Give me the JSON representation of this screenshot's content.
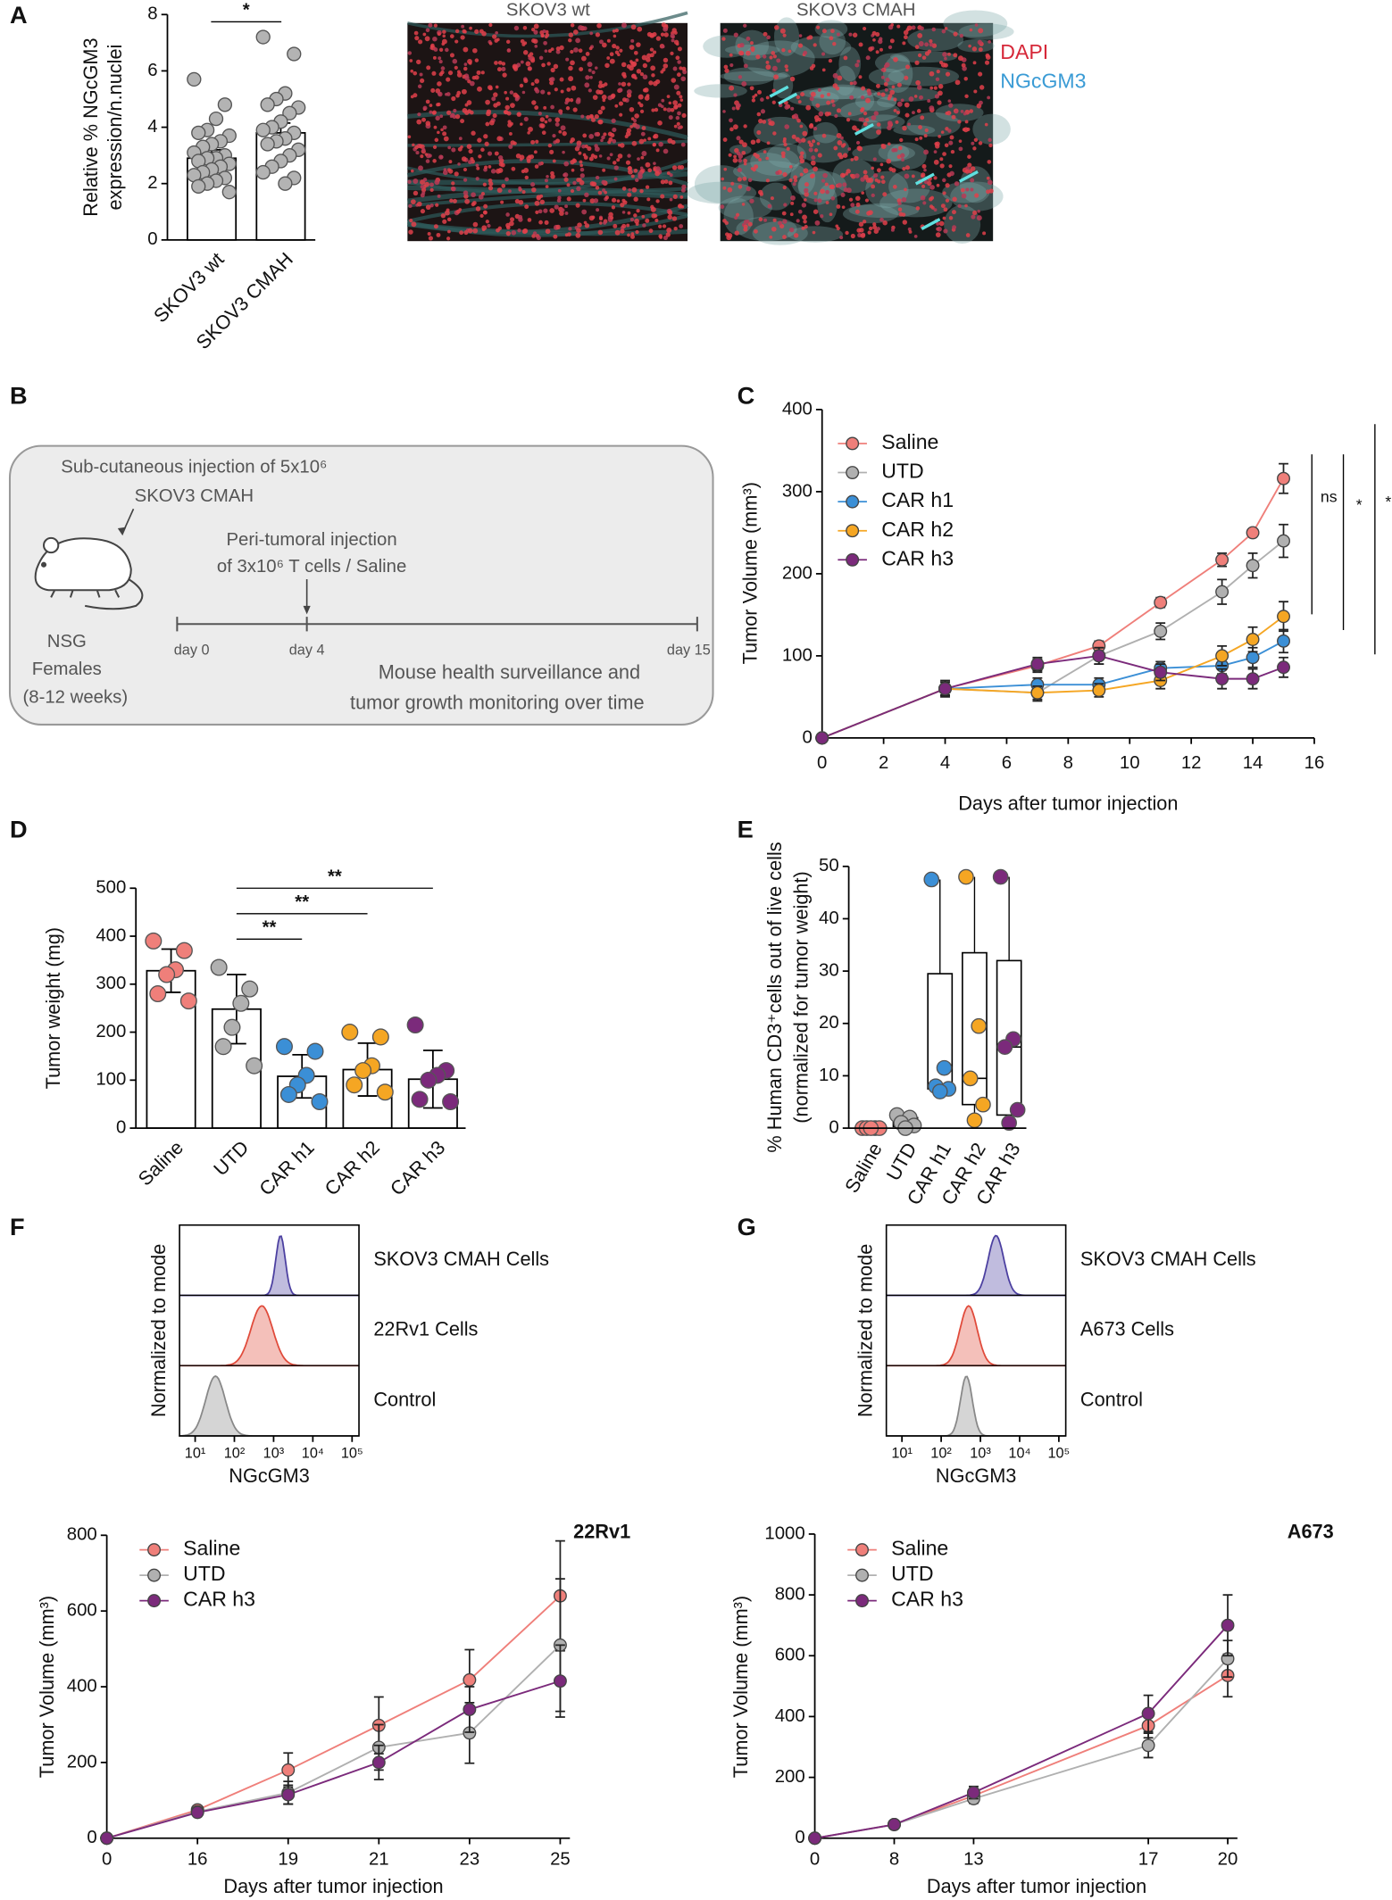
{
  "panel_labels": [
    "A",
    "B",
    "C",
    "D",
    "E",
    "F",
    "G"
  ],
  "images": {
    "titles": [
      "SKOV3 wt",
      "SKOV3 CMAH"
    ],
    "legend": [
      {
        "name": "DAPI",
        "color": "#d62839"
      },
      {
        "name": "NGcGM3",
        "color": "#3a9bd5"
      }
    ]
  },
  "schematic": {
    "injection": [
      "Sub-cutaneous injection of 5x10⁶",
      "SKOV3 CMAH"
    ],
    "treatment": [
      "Peri-tumoral injection",
      "of 3x10⁶ T cells / Saline"
    ],
    "mice": [
      "NSG",
      "Females",
      "(8-12 weeks)"
    ],
    "timeline": [
      "day 0",
      "day 4",
      "day 15"
    ],
    "monitoring": [
      "Mouse health surveillance and",
      "tumor growth monitoring over time"
    ]
  },
  "chart_data": [
    {
      "type": "bar_dot",
      "ylabel": [
        "Relative % NGcGM3",
        "expression/n.nuclei"
      ],
      "categories": [
        "SKOV3 wt",
        "SKOV3 CMAH"
      ],
      "values": [
        2.9,
        3.8
      ],
      "errors": [
        0.3,
        0.35
      ],
      "points": [
        [
          5.7,
          4.8,
          4.3,
          3.9,
          3.8,
          3.7,
          3.5,
          3.4,
          3.3,
          3.1,
          3.0,
          2.9,
          2.9,
          2.8,
          2.7,
          2.6,
          2.5,
          2.4,
          2.3,
          2.2,
          2.1,
          2.0,
          1.9,
          1.7
        ],
        [
          7.2,
          6.6,
          5.2,
          5.0,
          4.8,
          4.7,
          4.5,
          4.2,
          4.0,
          3.9,
          3.8,
          3.6,
          3.5,
          3.4,
          3.2,
          3.0,
          2.8,
          2.6,
          2.4,
          2.2,
          2.0
        ]
      ],
      "point_colors": [
        "#b3b3b3",
        "#b3b3b3"
      ],
      "ylim": [
        0,
        8
      ],
      "yticks": [
        0,
        2,
        4,
        6,
        8
      ],
      "annotations": [
        "*"
      ]
    },
    {
      "type": "line",
      "xlabel": "Days after tumor injection",
      "ylabel": "Tumor Volume (mm³)",
      "x": [
        0,
        4,
        7,
        9,
        11,
        13,
        14,
        15
      ],
      "xlim": [
        0,
        16
      ],
      "xticks": [
        0,
        2,
        4,
        6,
        8,
        10,
        12,
        14,
        16
      ],
      "ylim": [
        0,
        400
      ],
      "yticks": [
        0,
        100,
        200,
        300,
        400
      ],
      "series": [
        {
          "name": "Saline",
          "color": "#ef7f7a",
          "values": [
            0,
            60,
            88,
            112,
            165,
            217,
            250,
            316
          ],
          "errors": [
            0,
            10,
            8,
            6,
            6,
            8,
            0,
            18
          ]
        },
        {
          "name": "UTD",
          "color": "#b0b0b0",
          "values": [
            0,
            60,
            55,
            100,
            130,
            178,
            210,
            240
          ],
          "errors": [
            0,
            8,
            10,
            10,
            10,
            15,
            15,
            20
          ]
        },
        {
          "name": "CAR h1",
          "color": "#3b8fd6",
          "values": [
            0,
            60,
            65,
            65,
            85,
            88,
            98,
            118
          ],
          "errors": [
            0,
            8,
            8,
            8,
            8,
            10,
            12,
            14
          ]
        },
        {
          "name": "CAR h2",
          "color": "#f5a623",
          "values": [
            0,
            60,
            55,
            58,
            70,
            100,
            120,
            148
          ],
          "errors": [
            0,
            8,
            8,
            8,
            10,
            12,
            15,
            18
          ]
        },
        {
          "name": "CAR h3",
          "color": "#7b2a7b",
          "values": [
            0,
            60,
            90,
            100,
            80,
            72,
            72,
            86
          ],
          "errors": [
            0,
            8,
            8,
            10,
            10,
            12,
            12,
            12
          ]
        }
      ],
      "annotations": [
        "ns",
        "*",
        "*"
      ]
    },
    {
      "type": "bar_dot",
      "ylabel": "Tumor weight (mg)",
      "categories": [
        "Saline",
        "UTD",
        "CAR h1",
        "CAR h2",
        "CAR h3"
      ],
      "values": [
        328,
        248,
        108,
        122,
        102
      ],
      "errors": [
        45,
        72,
        45,
        55,
        60
      ],
      "points": [
        [
          390,
          370,
          330,
          320,
          280,
          265
        ],
        [
          335,
          290,
          260,
          210,
          170,
          130
        ],
        [
          170,
          160,
          110,
          90,
          70,
          55
        ],
        [
          200,
          190,
          130,
          120,
          90,
          75
        ],
        [
          215,
          120,
          110,
          100,
          60,
          55
        ]
      ],
      "point_colors": [
        "#ef7f7a",
        "#b0b0b0",
        "#3b8fd6",
        "#f5a623",
        "#7b2a7b"
      ],
      "ylim": [
        0,
        500
      ],
      "yticks": [
        0,
        100,
        200,
        300,
        400,
        500
      ],
      "annotations": [
        "**",
        "**",
        "**"
      ]
    },
    {
      "type": "box",
      "ylabel": [
        "% Human CD3⁺cells out of live cells",
        "(normalized for tumor weight)"
      ],
      "categories": [
        "Saline",
        "UTD",
        "CAR h1",
        "CAR h2",
        "CAR h3"
      ],
      "boxes": [
        {
          "min": 0,
          "q1": 0,
          "median": 0,
          "q3": 0,
          "max": 0
        },
        {
          "min": 0,
          "q1": 0.3,
          "median": 1,
          "q3": 2,
          "max": 2.5
        },
        {
          "min": 7,
          "q1": 7.5,
          "median": 8,
          "q3": 29.5,
          "max": 47.5
        },
        {
          "min": 1.5,
          "q1": 4.5,
          "median": 9.5,
          "q3": 33.5,
          "max": 48
        },
        {
          "min": 1,
          "q1": 2.5,
          "median": 15.5,
          "q3": 32,
          "max": 48
        }
      ],
      "points": [
        [
          0,
          0,
          0,
          0,
          0
        ],
        [
          2.5,
          2,
          1,
          0.5,
          0
        ],
        [
          47.5,
          11.5,
          8,
          7.5,
          7
        ],
        [
          48,
          19.5,
          9.5,
          4.5,
          1.5
        ],
        [
          48,
          17,
          15.5,
          3.5,
          1
        ]
      ],
      "point_colors": [
        "#ef7f7a",
        "#b0b0b0",
        "#3b8fd6",
        "#f5a623",
        "#7b2a7b"
      ],
      "ylim": [
        0,
        50
      ],
      "yticks": [
        0,
        10,
        20,
        30,
        40,
        50
      ]
    },
    {
      "type": "flow_histogram",
      "ylabel": "Normalized to mode",
      "xlabel": "NGcGM3",
      "log_x": true,
      "xlim": [
        4,
        150000
      ],
      "xticks": [
        {
          "value": 10,
          "label": "10¹"
        },
        {
          "value": 100,
          "label": "10²"
        },
        {
          "value": 1000,
          "label": "10³"
        },
        {
          "value": 10000,
          "label": "10⁴"
        },
        {
          "value": 100000,
          "label": "10⁵"
        }
      ],
      "series": [
        {
          "name": "SKOV3 CMAH Cells",
          "color": "#4b3fa0",
          "peak": 1500,
          "spread": 0.12
        },
        {
          "name": "22Rv1 Cells",
          "color": "#e04a3a",
          "peak": 500,
          "spread": 0.28
        },
        {
          "name": "Control",
          "color": "#888888",
          "peak": 33,
          "spread": 0.25
        }
      ]
    },
    {
      "type": "flow_histogram",
      "ylabel": "Normalized to mode",
      "xlabel": "NGcGM3",
      "log_x": true,
      "xlim": [
        4,
        150000
      ],
      "xticks": [
        {
          "value": 10,
          "label": "10¹"
        },
        {
          "value": 100,
          "label": "10²"
        },
        {
          "value": 1000,
          "label": "10³"
        },
        {
          "value": 10000,
          "label": "10⁴"
        },
        {
          "value": 100000,
          "label": "10⁵"
        }
      ],
      "series": [
        {
          "name": "SKOV3 CMAH Cells",
          "color": "#4b3fa0",
          "peak": 2500,
          "spread": 0.2
        },
        {
          "name": "A673 Cells",
          "color": "#e04a3a",
          "peak": 500,
          "spread": 0.22
        },
        {
          "name": "Control",
          "color": "#888888",
          "peak": 440,
          "spread": 0.15
        }
      ]
    },
    {
      "type": "line",
      "title": "22Rv1",
      "xlabel": "Days after tumor injection",
      "ylabel": "Tumor Volume (mm³)",
      "categories": [
        "0",
        "16",
        "19",
        "21",
        "23",
        "25"
      ],
      "ylim": [
        0,
        800
      ],
      "yticks": [
        0,
        200,
        400,
        600,
        800
      ],
      "series": [
        {
          "name": "Saline",
          "color": "#ef7f7a",
          "values": [
            0,
            75,
            180,
            298,
            418,
            640
          ],
          "errors": [
            0,
            10,
            45,
            75,
            80,
            145
          ]
        },
        {
          "name": "UTD",
          "color": "#b0b0b0",
          "values": [
            0,
            70,
            120,
            240,
            278,
            510
          ],
          "errors": [
            0,
            8,
            30,
            60,
            80,
            175
          ]
        },
        {
          "name": "CAR h3",
          "color": "#7b2a7b",
          "values": [
            0,
            68,
            115,
            200,
            340,
            415
          ],
          "errors": [
            0,
            8,
            25,
            45,
            60,
            95
          ]
        }
      ]
    },
    {
      "type": "line",
      "title": "A673",
      "xlabel": "Days after tumor injection",
      "ylabel": "Tumor Volume (mm³)",
      "categories": [
        "0",
        "8",
        "13",
        "17",
        "20"
      ],
      "ylim": [
        0,
        1000
      ],
      "yticks": [
        0,
        200,
        400,
        600,
        800,
        1000
      ],
      "series": [
        {
          "name": "Saline",
          "color": "#ef7f7a",
          "values": [
            0,
            45,
            140,
            370,
            535
          ],
          "errors": [
            0,
            5,
            15,
            40,
            70
          ]
        },
        {
          "name": "UTD",
          "color": "#b0b0b0",
          "values": [
            0,
            45,
            130,
            305,
            590
          ],
          "errors": [
            0,
            5,
            15,
            40,
            60
          ]
        },
        {
          "name": "CAR h3",
          "color": "#7b2a7b",
          "values": [
            0,
            45,
            150,
            410,
            700
          ],
          "errors": [
            0,
            5,
            20,
            60,
            100
          ]
        }
      ]
    }
  ]
}
